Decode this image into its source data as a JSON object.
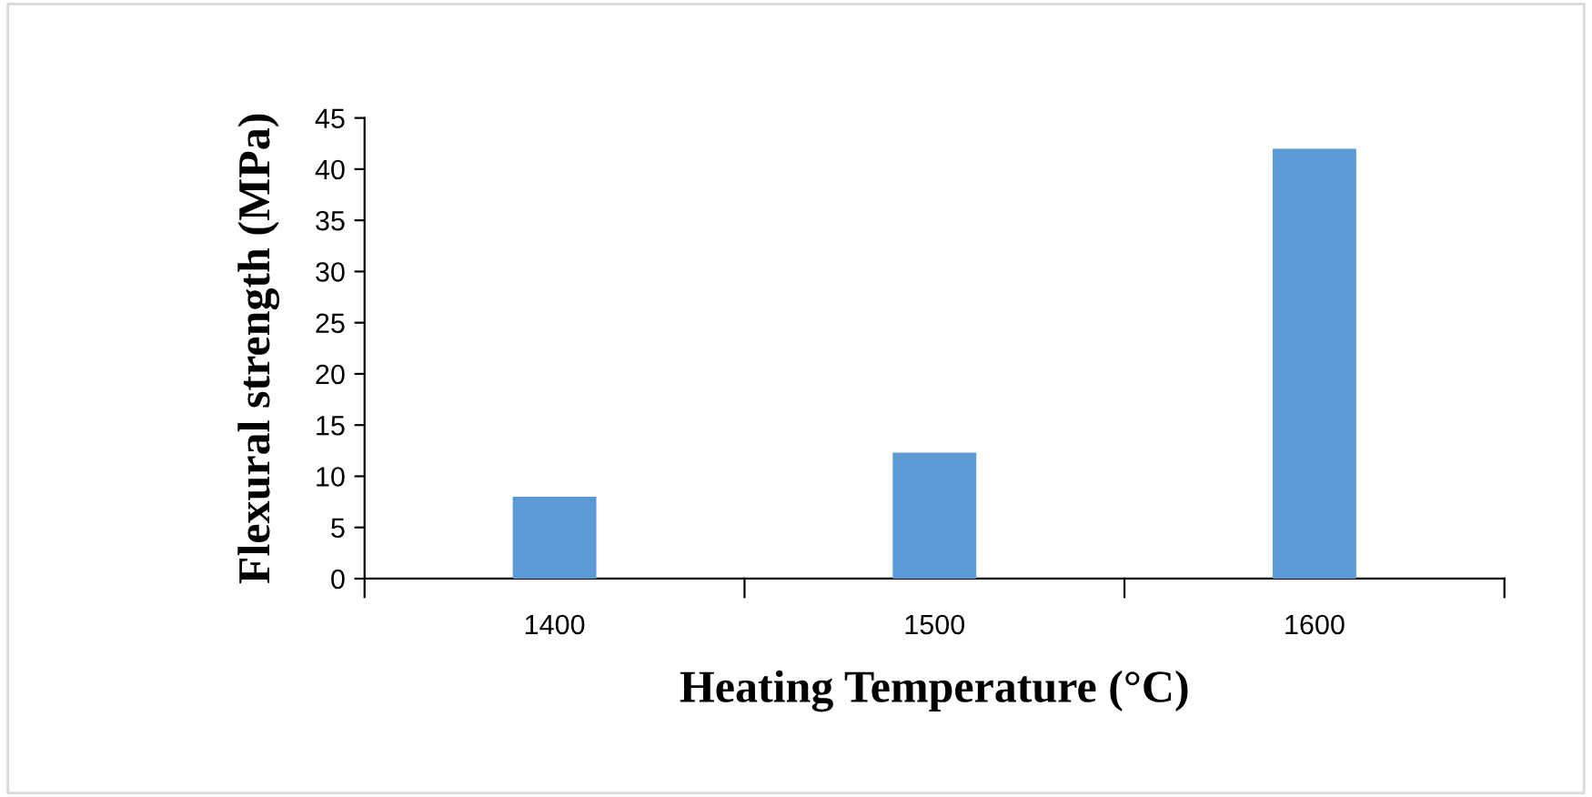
{
  "chart_data": {
    "type": "bar",
    "xlabel": "Heating Temperature (°C)",
    "ylabel": "Flexural strength (MPa)",
    "categories": [
      "1400",
      "1500",
      "1600"
    ],
    "values": [
      8.0,
      12.3,
      42.0
    ],
    "color": "#5b9bd5",
    "ylim": [
      0,
      45
    ],
    "yticks": [
      0,
      5,
      10,
      15,
      20,
      25,
      30,
      35,
      40,
      45
    ],
    "grid": false,
    "legend": false
  }
}
